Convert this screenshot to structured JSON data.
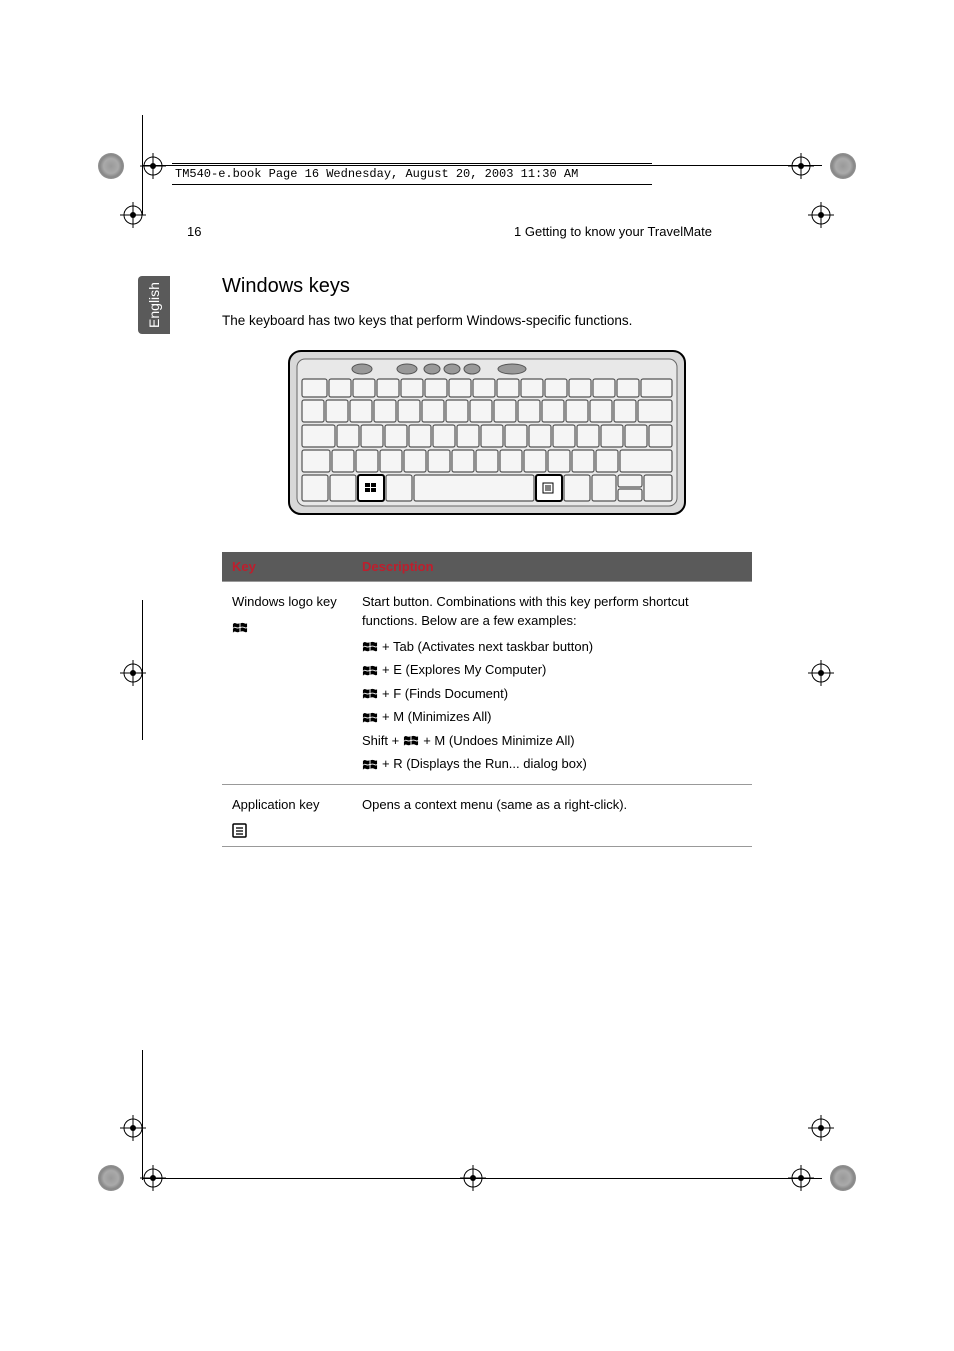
{
  "header": {
    "filename_line": "TM540-e.book  Page 16  Wednesday, August 20, 2003  11:30 AM"
  },
  "page_number": "16",
  "chapter": "1 Getting to know your TravelMate",
  "language_tab": "English",
  "section_heading": "Windows keys",
  "intro_text": "The keyboard has two keys that perform Windows-specific functions.",
  "table": {
    "header_key": "Key",
    "header_desc": "Description",
    "header_bg": "#5a5a5a",
    "header_text_color": "#be1e2d",
    "rows": [
      {
        "key_name": "Windows logo key",
        "desc_intro": "Start button. Combinations with this key perform shortcut functions. Below are a few examples:",
        "shortcuts": [
          {
            "prefix": "",
            "combo": " + Tab (Activates next taskbar button)"
          },
          {
            "prefix": "",
            "combo": " + E (Explores My Computer)"
          },
          {
            "prefix": "",
            "combo": " + F (Finds Document)"
          },
          {
            "prefix": "",
            "combo": " + M (Minimizes All)"
          },
          {
            "prefix": "Shift + ",
            "combo": " + M (Undoes Minimize All)"
          },
          {
            "prefix": "",
            "combo": " + R (Displays the Run... dialog box)"
          }
        ]
      },
      {
        "key_name": "Application key",
        "desc_intro": "Opens a context menu (same as a right-click).",
        "shortcuts": []
      }
    ]
  },
  "colors": {
    "text": "#000000",
    "tab_bg": "#5a5a5a",
    "tab_text": "#ffffff",
    "table_border": "#999999"
  }
}
